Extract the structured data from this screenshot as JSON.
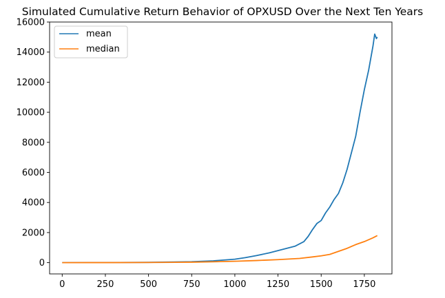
{
  "chart_data": {
    "type": "line",
    "title": "Simulated Cumulative Return Behavior of OPXUSD Over the Next Ten Years",
    "xlabel": "",
    "ylabel": "",
    "xlim": [
      -73,
      1910
    ],
    "ylim": [
      -750,
      16000
    ],
    "xticks": [
      0,
      250,
      500,
      750,
      1000,
      1250,
      1500,
      1750
    ],
    "yticks": [
      0,
      2000,
      4000,
      6000,
      8000,
      10000,
      12000,
      14000,
      16000
    ],
    "grid": false,
    "legend": {
      "position": "top-left",
      "entries": [
        "mean",
        "median"
      ]
    },
    "series": [
      {
        "name": "mean",
        "color": "#1f77b4",
        "x": [
          0,
          250,
          500,
          750,
          875,
          1000,
          1060,
          1125,
          1200,
          1250,
          1300,
          1350,
          1400,
          1425,
          1450,
          1475,
          1500,
          1525,
          1550,
          1575,
          1600,
          1625,
          1650,
          1675,
          1700,
          1725,
          1750,
          1775,
          1800,
          1810,
          1820,
          1825
        ],
        "y": [
          1,
          5,
          20,
          60,
          120,
          230,
          330,
          470,
          650,
          800,
          950,
          1100,
          1400,
          1750,
          2200,
          2600,
          2800,
          3300,
          3700,
          4200,
          4600,
          5300,
          6200,
          7300,
          8400,
          10000,
          11500,
          12800,
          14400,
          15200,
          14900,
          15000
        ]
      },
      {
        "name": "median",
        "color": "#ff7f0e",
        "x": [
          0,
          250,
          500,
          750,
          875,
          1000,
          1125,
          1250,
          1375,
          1450,
          1500,
          1550,
          1600,
          1650,
          1700,
          1750,
          1800,
          1825
        ],
        "y": [
          1,
          3,
          10,
          30,
          55,
          90,
          140,
          200,
          280,
          380,
          450,
          550,
          750,
          950,
          1200,
          1400,
          1650,
          1800
        ]
      }
    ]
  }
}
